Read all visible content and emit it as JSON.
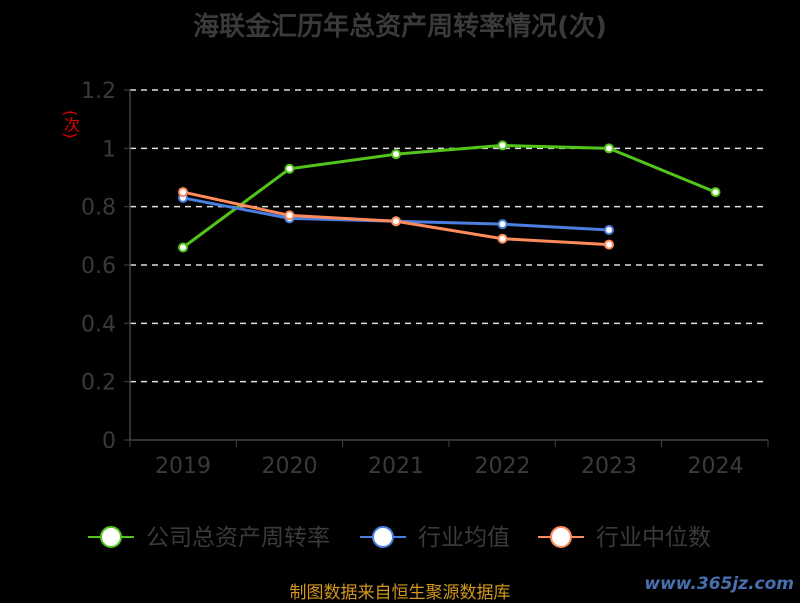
{
  "chart_data": {
    "type": "line",
    "title": "海联金汇历年总资产周转率情况(次)",
    "ylabel": "(次)",
    "categories": [
      "2019",
      "2020",
      "2021",
      "2022",
      "2023",
      "2024"
    ],
    "yticks": [
      "0",
      "0.2",
      "0.4",
      "0.6",
      "0.8",
      "1",
      "1.2"
    ],
    "ylim": [
      0,
      1.2
    ],
    "grid": true,
    "legend_position": "bottom",
    "series": [
      {
        "name": "公司总资产周转率",
        "color": "#52c41a",
        "values": [
          0.66,
          0.93,
          0.98,
          1.01,
          1.0,
          0.85
        ]
      },
      {
        "name": "行业均值",
        "color": "#4a7fe0",
        "values": [
          0.83,
          0.76,
          0.75,
          0.74,
          0.72,
          null
        ]
      },
      {
        "name": "行业中位数",
        "color": "#ff8a5c",
        "values": [
          0.85,
          0.77,
          0.75,
          0.69,
          0.67,
          null
        ]
      }
    ]
  },
  "footer": {
    "source": "制图数据来自恒生聚源数据库",
    "watermark": "www.365jz.com"
  }
}
